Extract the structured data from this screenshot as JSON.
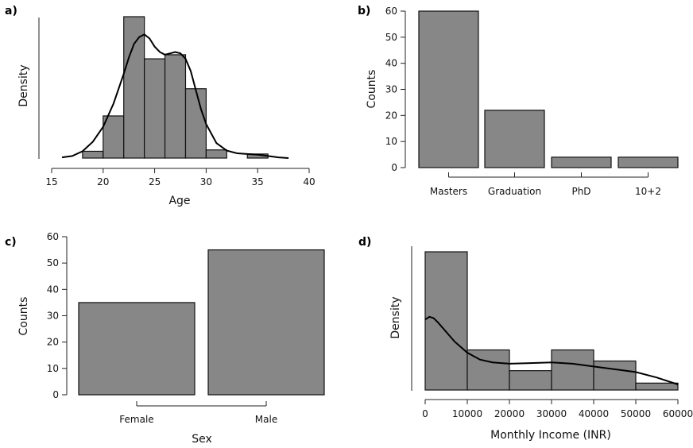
{
  "colors": {
    "bar_fill": "#878787",
    "bar_stroke": "#111111",
    "curve": "#000000"
  },
  "chart_data": [
    {
      "panel": "a)",
      "type": "bar",
      "subtype": "histogram-with-density",
      "title": "",
      "xlabel": "Age",
      "ylabel": "Density",
      "xlim": [
        16,
        40
      ],
      "x_ticks": [
        "15",
        "20",
        "25",
        "30",
        "35",
        "40"
      ],
      "bins": [
        {
          "x0": 18,
          "x1": 20,
          "value": 0.5
        },
        {
          "x0": 20,
          "x1": 22,
          "value": 3.1
        },
        {
          "x0": 22,
          "x1": 24,
          "value": 10.4
        },
        {
          "x0": 24,
          "x1": 26,
          "value": 7.3
        },
        {
          "x0": 26,
          "x1": 28,
          "value": 7.6
        },
        {
          "x0": 28,
          "x1": 30,
          "value": 5.1
        },
        {
          "x0": 30,
          "x1": 32,
          "value": 0.6
        },
        {
          "x0": 34,
          "x1": 36,
          "value": 0.3
        }
      ],
      "ylim": [
        0,
        10.4
      ],
      "density": {
        "x": [
          16,
          17,
          18,
          19,
          20,
          21,
          22,
          22.5,
          23,
          23.5,
          24,
          24.5,
          25,
          25.5,
          26,
          26.5,
          27,
          27.5,
          28,
          28.5,
          29,
          29.5,
          30,
          31,
          32,
          33,
          34,
          35,
          36,
          37,
          38
        ],
        "y": [
          0.05,
          0.15,
          0.5,
          1.2,
          2.3,
          4.0,
          6.2,
          7.4,
          8.4,
          8.9,
          9.1,
          8.8,
          8.2,
          7.8,
          7.6,
          7.7,
          7.8,
          7.7,
          7.3,
          6.4,
          5.0,
          3.6,
          2.5,
          1.1,
          0.55,
          0.35,
          0.3,
          0.25,
          0.15,
          0.05,
          0.0
        ]
      }
    },
    {
      "panel": "b)",
      "type": "bar",
      "title": "",
      "xlabel": "",
      "ylabel": "Counts",
      "ylim": [
        0,
        60
      ],
      "y_ticks": [
        "0",
        "10",
        "20",
        "30",
        "40",
        "50",
        "60"
      ],
      "categories": [
        "Masters",
        "Graduation",
        "PhD",
        "10+2"
      ],
      "values": [
        60,
        22,
        4,
        4
      ]
    },
    {
      "panel": "c)",
      "type": "bar",
      "title": "",
      "xlabel": "Sex",
      "ylabel": "Counts",
      "ylim": [
        0,
        60
      ],
      "y_ticks": [
        "0",
        "10",
        "20",
        "30",
        "40",
        "50",
        "60"
      ],
      "categories": [
        "Female",
        "Male"
      ],
      "values": [
        35,
        55
      ]
    },
    {
      "panel": "d)",
      "type": "bar",
      "subtype": "histogram-with-density",
      "title": "",
      "xlabel": "Monthly Income (INR)",
      "ylabel": "Density",
      "xlim": [
        0,
        60000
      ],
      "x_ticks": [
        "0",
        "10000",
        "20000",
        "30000",
        "40000",
        "50000",
        "60000"
      ],
      "bins": [
        {
          "x0": 0,
          "x1": 10000,
          "value": 10
        },
        {
          "x0": 10000,
          "x1": 20000,
          "value": 2.9
        },
        {
          "x0": 20000,
          "x1": 30000,
          "value": 1.4
        },
        {
          "x0": 30000,
          "x1": 40000,
          "value": 2.9
        },
        {
          "x0": 40000,
          "x1": 50000,
          "value": 2.1
        },
        {
          "x0": 50000,
          "x1": 60000,
          "value": 0.5
        }
      ],
      "ylim": [
        0,
        10
      ],
      "density": {
        "x": [
          0,
          1000,
          2000,
          3000,
          5000,
          7000,
          10000,
          13000,
          16000,
          20000,
          25000,
          30000,
          35000,
          40000,
          45000,
          50000,
          55000,
          60000
        ],
        "y": [
          5.1,
          5.3,
          5.2,
          4.9,
          4.2,
          3.5,
          2.7,
          2.2,
          2.0,
          1.9,
          1.95,
          2.0,
          1.9,
          1.7,
          1.5,
          1.3,
          0.9,
          0.4
        ]
      }
    }
  ]
}
